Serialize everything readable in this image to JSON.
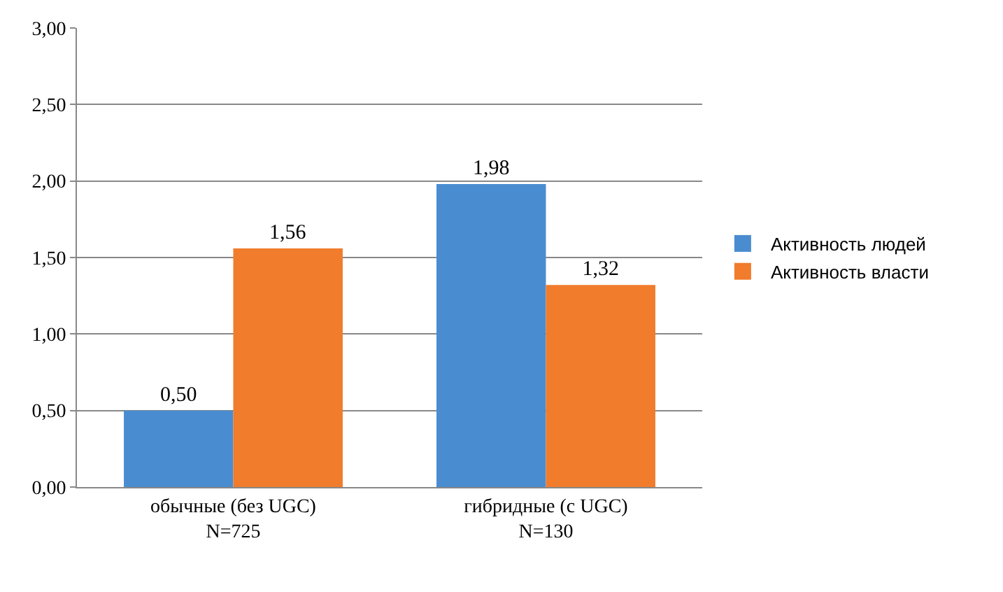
{
  "chart_data": {
    "type": "bar",
    "categories": [
      "обычные (без UGC)\nN=725",
      "гибридные (с UGC)\nN=130"
    ],
    "series": [
      {
        "name": "Активность людей",
        "color": "#4a8cd0",
        "values": [
          0.5,
          1.98
        ],
        "value_labels": [
          "0,50",
          "1,98"
        ]
      },
      {
        "name": "Активность власти",
        "color": "#f07c2c",
        "values": [
          1.56,
          1.32
        ],
        "value_labels": [
          "1,56",
          "1,32"
        ]
      }
    ],
    "ylim": [
      0,
      3
    ],
    "yticks": [
      {
        "value": 0,
        "label": "0,00"
      },
      {
        "value": 0.5,
        "label": "0,50"
      },
      {
        "value": 1,
        "label": "1,00"
      },
      {
        "value": 1.5,
        "label": "1,50"
      },
      {
        "value": 2,
        "label": "2,00"
      },
      {
        "value": 2.5,
        "label": "2,50"
      },
      {
        "value": 3,
        "label": "3,00"
      }
    ],
    "grid": "y",
    "legend": "right"
  }
}
